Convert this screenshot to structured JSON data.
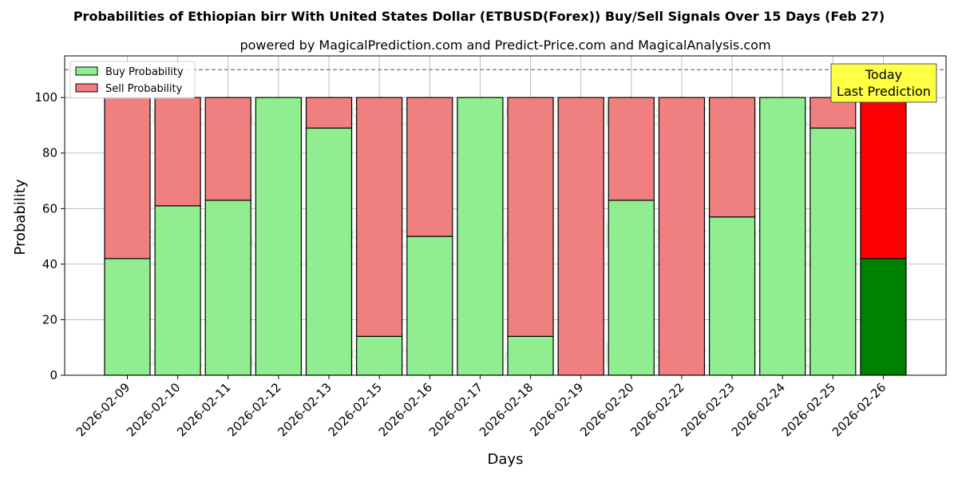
{
  "chart_data": {
    "type": "bar",
    "stacked": true,
    "title": "Probabilities of Ethiopian birr With United States Dollar (ETBUSD(Forex)) Buy/Sell Signals Over 15 Days (Feb 27)",
    "subtitle": "powered by MagicalPrediction.com and Predict-Price.com and MagicalAnalysis.com",
    "xlabel": "Days",
    "ylabel": "Probability",
    "ylim": [
      0,
      115
    ],
    "yticks": [
      0,
      20,
      40,
      60,
      80,
      100
    ],
    "grid": true,
    "reference_line": 110,
    "legend_position": "top-left",
    "categories": [
      "2026-02-09",
      "2026-02-10",
      "2026-02-11",
      "2026-02-12",
      "2026-02-13",
      "2026-02-15",
      "2026-02-16",
      "2026-02-17",
      "2026-02-18",
      "2026-02-19",
      "2026-02-20",
      "2026-02-22",
      "2026-02-23",
      "2026-02-24",
      "2026-02-25",
      "2026-02-26"
    ],
    "series": [
      {
        "name": "Buy Probability",
        "values": [
          42,
          61,
          63,
          100,
          89,
          14,
          50,
          100,
          14,
          0,
          63,
          0,
          57,
          100,
          89,
          42
        ],
        "color": "#90ee90",
        "highlight_color": "#008000"
      },
      {
        "name": "Sell Probability",
        "values": [
          58,
          39,
          37,
          0,
          11,
          86,
          50,
          0,
          86,
          100,
          37,
          100,
          43,
          0,
          11,
          58
        ],
        "color": "#f08080",
        "highlight_color": "#ff0000"
      }
    ],
    "highlight_index": 15,
    "annotation": {
      "line1": "Today",
      "line2": "Last Prediction",
      "color": "#ffff44"
    },
    "watermarks": [
      "MagicalAnalysis.com",
      "MagicalPrediction.com"
    ]
  }
}
